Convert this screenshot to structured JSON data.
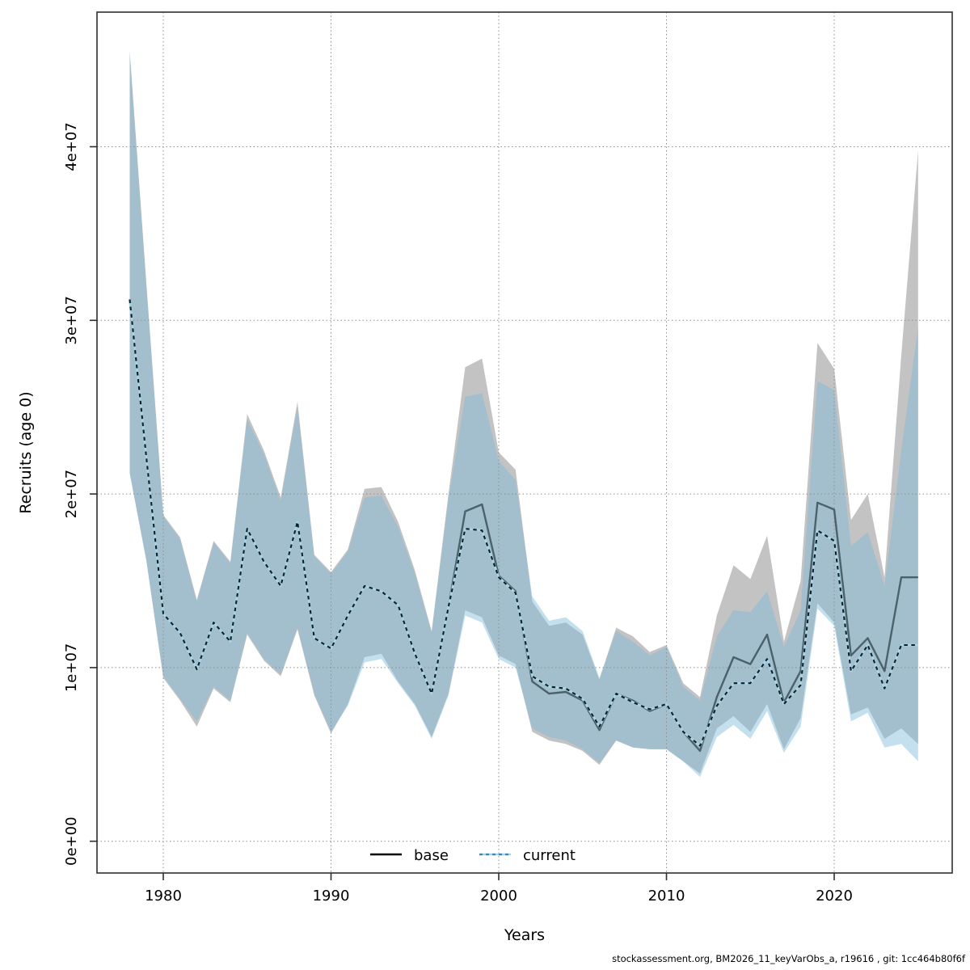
{
  "figure": {
    "x_axis_title": "Years",
    "y_axis_title": "Recruits (age 0)",
    "footer": "stockassessment.org, BM2026_11_keyVarObs_a, r19616 , git: 1cc464b80f6f"
  },
  "legend": {
    "base_label": "base",
    "current_label": "current"
  },
  "colors": {
    "base_band": "#c3c3c3",
    "current_band": "rgba(125,185,215,0.45)",
    "base_line": "#4b626c",
    "current_line_dash": "#0e1f26",
    "current_line_casing": "#a9d4e8",
    "legend_base_line": "#000000",
    "legend_current_dash": "#3a87b5",
    "grid": "#8f8f8f",
    "frame": "#2e2e2e",
    "background": "#ffffff"
  },
  "axes": {
    "x_ticks": {
      "values": [
        1980,
        1990,
        2000,
        2010,
        2020
      ],
      "labels": [
        "1980",
        "1990",
        "2000",
        "2010",
        "2020"
      ]
    },
    "y_ticks": {
      "values_millions": [
        0,
        10,
        20,
        30,
        40
      ],
      "labels": [
        "0e+00",
        "1e+07",
        "2e+07",
        "3e+07",
        "4e+07"
      ]
    }
  },
  "chart_data": {
    "type": "line",
    "title": "",
    "xlabel": "Years",
    "ylabel": "Recruits (age 0)",
    "legend_position": "bottom-center-inside",
    "grid": "dotted",
    "units": "individuals (values stored in millions, axis shown in scientific notation)",
    "x_range_years": [
      1978,
      2025
    ],
    "ylim_millions": [
      0,
      46
    ],
    "x": [
      1978,
      1979,
      1980,
      1981,
      1982,
      1983,
      1984,
      1985,
      1986,
      1987,
      1988,
      1989,
      1990,
      1991,
      1992,
      1993,
      1994,
      1995,
      1996,
      1997,
      1998,
      1999,
      2000,
      2001,
      2002,
      2003,
      2004,
      2005,
      2006,
      2007,
      2008,
      2009,
      2010,
      2011,
      2012,
      2013,
      2014,
      2015,
      2016,
      2017,
      2018,
      2019,
      2020,
      2021,
      2022,
      2023,
      2024,
      2025
    ],
    "series": [
      {
        "name": "base",
        "line_style": "solid",
        "band": "gray confidence ribbon",
        "median_millions": [
          31.2,
          22.0,
          13.1,
          12.0,
          9.9,
          12.6,
          11.5,
          18.0,
          16.1,
          14.7,
          18.4,
          11.7,
          11.1,
          13.0,
          14.7,
          14.4,
          13.6,
          10.8,
          8.5,
          13.5,
          19.0,
          19.4,
          15.3,
          14.4,
          9.2,
          8.5,
          8.6,
          8.1,
          6.4,
          8.5,
          8.1,
          7.5,
          7.9,
          6.3,
          5.2,
          8.3,
          10.6,
          10.2,
          11.9,
          8.0,
          9.8,
          19.5,
          19.1,
          10.7,
          11.7,
          9.8,
          15.2,
          15.2
        ],
        "hi_millions": [
          45.5,
          32.0,
          18.8,
          17.5,
          13.9,
          17.3,
          16.1,
          24.6,
          22.5,
          19.8,
          25.3,
          16.5,
          15.5,
          16.8,
          20.3,
          20.4,
          18.4,
          15.6,
          12.1,
          20.0,
          27.3,
          27.8,
          22.4,
          21.4,
          13.8,
          12.4,
          12.6,
          11.9,
          9.3,
          12.3,
          11.8,
          10.9,
          11.3,
          9.1,
          8.3,
          13.0,
          15.9,
          15.1,
          17.6,
          11.5,
          15.0,
          28.7,
          27.2,
          18.5,
          20.0,
          15.2,
          28.0,
          39.8
        ],
        "lo_millions": [
          21.2,
          16.1,
          9.4,
          8.1,
          6.6,
          8.8,
          8.0,
          11.9,
          10.4,
          9.5,
          12.2,
          8.4,
          6.2,
          7.9,
          10.6,
          10.8,
          9.2,
          7.9,
          6.0,
          8.5,
          13.3,
          12.9,
          10.7,
          10.2,
          6.3,
          5.8,
          5.6,
          5.2,
          4.4,
          5.8,
          5.4,
          5.3,
          5.3,
          4.6,
          3.9,
          6.5,
          7.2,
          6.3,
          7.9,
          5.3,
          7.1,
          13.7,
          12.6,
          7.3,
          7.7,
          5.9,
          6.5,
          5.6
        ]
      },
      {
        "name": "current",
        "line_style": "dashed",
        "band": "light blue confidence ribbon",
        "median_millions": [
          31.2,
          22.0,
          13.1,
          12.0,
          9.9,
          12.6,
          11.5,
          18.0,
          16.1,
          14.7,
          18.4,
          11.7,
          11.1,
          13.0,
          14.7,
          14.4,
          13.6,
          10.8,
          8.5,
          13.5,
          18.0,
          17.9,
          15.2,
          14.3,
          9.5,
          8.9,
          8.8,
          8.2,
          6.6,
          8.5,
          8.0,
          7.6,
          7.9,
          6.3,
          5.5,
          7.8,
          9.1,
          9.1,
          10.5,
          7.9,
          9.0,
          17.9,
          17.3,
          9.8,
          11.3,
          8.8,
          11.3,
          11.3
        ],
        "hi_millions": [
          45.3,
          31.8,
          18.7,
          17.4,
          13.8,
          17.2,
          16.0,
          24.3,
          22.3,
          19.6,
          25.0,
          16.4,
          15.4,
          16.7,
          19.8,
          19.9,
          18.1,
          15.4,
          12.0,
          19.7,
          25.6,
          25.8,
          21.9,
          20.8,
          14.1,
          12.7,
          12.9,
          12.1,
          9.4,
          12.1,
          11.5,
          10.7,
          11.2,
          8.9,
          8.1,
          11.8,
          13.3,
          13.2,
          14.4,
          11.2,
          13.3,
          26.5,
          26.0,
          17.0,
          17.8,
          14.7,
          22.5,
          29.6
        ],
        "lo_millions": [
          21.2,
          16.1,
          9.5,
          8.2,
          6.9,
          8.9,
          8.1,
          12.0,
          10.5,
          9.6,
          12.3,
          8.5,
          6.3,
          7.8,
          10.3,
          10.5,
          9.1,
          7.8,
          5.9,
          8.4,
          13.0,
          12.6,
          10.5,
          10.0,
          6.5,
          6.0,
          5.8,
          5.3,
          4.5,
          5.8,
          5.4,
          5.3,
          5.3,
          4.6,
          3.7,
          6.0,
          6.7,
          5.9,
          7.5,
          5.1,
          6.6,
          13.4,
          12.4,
          6.9,
          7.4,
          5.4,
          5.6,
          4.6
        ]
      }
    ]
  }
}
